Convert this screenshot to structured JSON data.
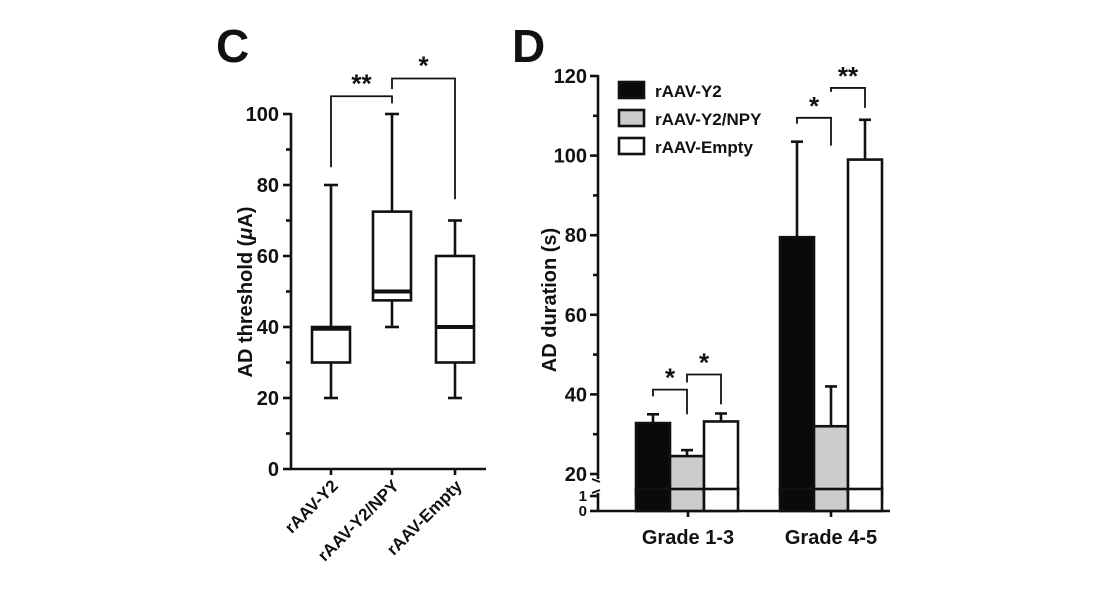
{
  "chart_data": [
    {
      "panel_label": "C",
      "type": "box",
      "title": "",
      "xlabel": "",
      "ylabel": "AD threshold (μA)",
      "ylabel_parts": {
        "pre": "AD threshold (",
        "mu": "μ",
        "post": "A)"
      },
      "ylim": [
        0,
        100
      ],
      "yticks": [
        0,
        20,
        40,
        60,
        80,
        100
      ],
      "yminor": [
        10,
        30,
        50,
        70,
        90
      ],
      "categories": [
        "rAAV-Y2",
        "rAAV-Y2/NPY",
        "rAAV-Empty"
      ],
      "boxes": [
        {
          "name": "rAAV-Y2",
          "min": 20,
          "q1": 30,
          "median": 39.5,
          "q3": 40,
          "max": 80
        },
        {
          "name": "rAAV-Y2/NPY",
          "min": 40,
          "q1": 47.5,
          "median": 50,
          "q3": 72.5,
          "max": 100
        },
        {
          "name": "rAAV-Empty",
          "min": 20,
          "q1": 30,
          "median": 40,
          "q3": 60,
          "max": 70
        }
      ],
      "significance": [
        {
          "from": 0,
          "to": 1,
          "label": "**",
          "level": 105,
          "left_drop_to": 85,
          "right_drop_to": 103
        },
        {
          "from": 1,
          "to": 2,
          "label": "*",
          "level": 110,
          "left_drop_to": 107,
          "right_drop_to": 76
        }
      ]
    },
    {
      "panel_label": "D",
      "type": "bar",
      "title": "",
      "xlabel": "",
      "ylabel": "AD duration (s)",
      "ylim": [
        0,
        120
      ],
      "axis_break": [
        1,
        20
      ],
      "yticks": [
        0,
        1,
        20,
        40,
        60,
        80,
        100,
        120
      ],
      "yminor": [
        30,
        50,
        70,
        90,
        110
      ],
      "categories": [
        "Grade 1-3",
        "Grade 4-5"
      ],
      "series": [
        {
          "name": "rAAV-Y2",
          "color": "#0a0a0a",
          "values": [
            32.8,
            79.5
          ],
          "errors": [
            2.2,
            24
          ]
        },
        {
          "name": "rAAV-Y2/NPY",
          "color": "#cccccc",
          "values": [
            24.5,
            32
          ],
          "errors": [
            1.5,
            10
          ]
        },
        {
          "name": "rAAV-Empty",
          "color": "#ffffff",
          "values": [
            33.2,
            99
          ],
          "errors": [
            2,
            10
          ]
        }
      ],
      "legend": {
        "placement": "top-left",
        "entries": [
          "rAAV-Y2",
          "rAAV-Y2/NPY",
          "rAAV-Empty"
        ]
      },
      "significance": [
        {
          "group": 0,
          "from": 0,
          "to": 1,
          "label": "*",
          "level": 41.2,
          "left_drop_to": 39.5,
          "right_drop_to": 35
        },
        {
          "group": 0,
          "from": 1,
          "to": 2,
          "label": "*",
          "level": 45,
          "left_drop_to": 43,
          "right_drop_to": 37.5
        },
        {
          "group": 1,
          "from": 0,
          "to": 1,
          "label": "*",
          "level": 109.5,
          "left_drop_to": 108,
          "right_drop_to": 102.5
        },
        {
          "group": 1,
          "from": 1,
          "to": 2,
          "label": "**",
          "level": 117,
          "left_drop_to": 116,
          "right_drop_to": 112
        }
      ]
    }
  ]
}
